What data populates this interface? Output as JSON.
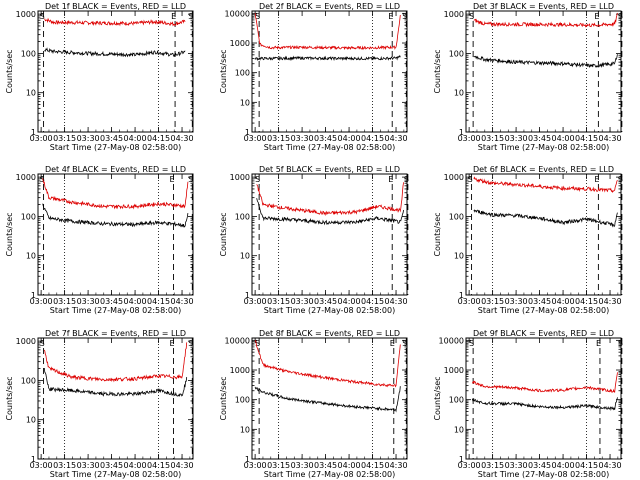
{
  "colors": {
    "events": "#000000",
    "lld": "#dd0000",
    "axis": "#000000"
  },
  "chart_data": [
    {
      "type": "line",
      "title": "Det 1f BLACK = Events, RED = LLD",
      "ylabel": "Counts/sec",
      "xlabel": "Start Time (27-May-08 02:58:00)",
      "x_ticks": [
        "03:00",
        "03:15",
        "03:30",
        "03:45",
        "04:00",
        "04:15",
        "04:30"
      ],
      "y_ticks": [
        "1",
        "10",
        "100",
        "1000"
      ],
      "xlim": [
        "02:58",
        "04:37"
      ],
      "ylim": [
        1,
        1200
      ],
      "y_scale": "log",
      "series": [
        {
          "name": "LLD",
          "color": "red",
          "x": [
            "03:02",
            "03:08",
            "03:30",
            "04:00",
            "04:13",
            "04:25",
            "04:32"
          ],
          "y": [
            750,
            620,
            600,
            580,
            640,
            560,
            650
          ]
        },
        {
          "name": "Events",
          "color": "black",
          "x": [
            "03:02",
            "03:08",
            "03:30",
            "04:00",
            "04:13",
            "04:25",
            "04:32"
          ],
          "y": [
            125,
            112,
            100,
            92,
            108,
            90,
            110
          ]
        }
      ],
      "markers": [
        {
          "label": "S",
          "time": "02:59"
        },
        {
          "label": "E",
          "time": "04:23"
        },
        {
          "label": "S",
          "time": "04:34"
        }
      ]
    },
    {
      "type": "line",
      "title": "Det 2f BLACK = Events, RED = LLD",
      "ylabel": "Counts/sec",
      "xlabel": "Start Time (27-May-08 02:58:00)",
      "x_ticks": [
        "03:00",
        "03:15",
        "03:30",
        "03:45",
        "04:00",
        "04:15",
        "04:30"
      ],
      "y_ticks": [
        "1",
        "10",
        "100",
        "1000",
        "10000"
      ],
      "xlim": [
        "02:58",
        "04:37"
      ],
      "ylim": [
        1,
        12000
      ],
      "y_scale": "log",
      "series": [
        {
          "name": "LLD",
          "color": "red",
          "x": [
            "03:00",
            "03:03",
            "03:10",
            "03:30",
            "04:00",
            "04:20",
            "04:30",
            "04:33"
          ],
          "y": [
            10000,
            900,
            700,
            720,
            680,
            700,
            720,
            10000
          ]
        },
        {
          "name": "Events",
          "color": "black",
          "x": [
            "03:00",
            "03:03",
            "03:10",
            "03:30",
            "04:00",
            "04:20",
            "04:30",
            "04:33"
          ],
          "y": [
            300,
            300,
            300,
            310,
            300,
            300,
            310,
            350
          ]
        }
      ],
      "markers": [
        {
          "label": "S",
          "time": "03:00"
        },
        {
          "label": "E",
          "time": "04:25"
        },
        {
          "label": "S",
          "time": "04:34"
        }
      ]
    },
    {
      "type": "line",
      "title": "Det 3f BLACK = Events, RED = LLD",
      "ylabel": "Counts/sec",
      "xlabel": "Start Time (27-May-08 02:58:00)",
      "x_ticks": [
        "03:00",
        "03:15",
        "03:30",
        "03:45",
        "04:00",
        "04:15",
        "04:30"
      ],
      "y_ticks": [
        "1",
        "10",
        "100",
        "1000"
      ],
      "xlim": [
        "02:58",
        "04:37"
      ],
      "ylim": [
        1,
        1200
      ],
      "y_scale": "log",
      "series": [
        {
          "name": "LLD",
          "color": "red",
          "x": [
            "03:03",
            "03:10",
            "03:30",
            "04:00",
            "04:20",
            "04:33",
            "04:35"
          ],
          "y": [
            700,
            560,
            550,
            540,
            520,
            560,
            1100
          ]
        },
        {
          "name": "Events",
          "color": "black",
          "x": [
            "03:03",
            "03:10",
            "03:30",
            "04:00",
            "04:20",
            "04:33",
            "04:35"
          ],
          "y": [
            85,
            70,
            60,
            55,
            48,
            55,
            110
          ]
        }
      ],
      "markers": [
        {
          "label": "S",
          "time": "03:00"
        },
        {
          "label": "E",
          "time": "04:20"
        },
        {
          "label": "S",
          "time": "04:35"
        }
      ]
    },
    {
      "type": "line",
      "title": "Det 4f BLACK = Events, RED = LLD",
      "ylabel": "Counts/sec",
      "xlabel": "Start Time (27-May-08 02:58:00)",
      "x_ticks": [
        "03:00",
        "03:15",
        "03:30",
        "03:45",
        "04:00",
        "04:15",
        "04:30"
      ],
      "y_ticks": [
        "1",
        "10",
        "100",
        "1000"
      ],
      "xlim": [
        "02:58",
        "04:37"
      ],
      "ylim": [
        1,
        1200
      ],
      "y_scale": "log",
      "series": [
        {
          "name": "LLD",
          "color": "red",
          "x": [
            "03:01",
            "03:05",
            "03:20",
            "03:40",
            "04:00",
            "04:15",
            "04:28",
            "04:32",
            "04:34"
          ],
          "y": [
            900,
            300,
            230,
            180,
            180,
            210,
            190,
            180,
            1000
          ]
        },
        {
          "name": "Events",
          "color": "black",
          "x": [
            "03:01",
            "03:05",
            "03:20",
            "03:40",
            "04:00",
            "04:15",
            "04:28",
            "04:32",
            "04:34"
          ],
          "y": [
            200,
            90,
            75,
            65,
            62,
            70,
            62,
            58,
            120
          ]
        }
      ],
      "markers": [
        {
          "label": "S",
          "time": "02:59"
        },
        {
          "label": "E",
          "time": "04:22"
        },
        {
          "label": "S",
          "time": "04:34"
        }
      ]
    },
    {
      "type": "line",
      "title": "Det 5f BLACK = Events, RED = LLD",
      "ylabel": "Counts/sec",
      "xlabel": "Start Time (27-May-08 02:58:00)",
      "x_ticks": [
        "03:00",
        "03:15",
        "03:30",
        "03:45",
        "04:00",
        "04:15",
        "04:30"
      ],
      "y_ticks": [
        "1",
        "10",
        "100",
        "1000"
      ],
      "xlim": [
        "02:58",
        "04:37"
      ],
      "ylim": [
        1,
        1200
      ],
      "y_scale": "log",
      "series": [
        {
          "name": "LLD",
          "color": "red",
          "x": [
            "03:01",
            "03:05",
            "03:20",
            "03:45",
            "04:05",
            "04:18",
            "04:30",
            "04:33",
            "04:35"
          ],
          "y": [
            700,
            200,
            160,
            120,
            130,
            180,
            150,
            140,
            900
          ]
        },
        {
          "name": "Events",
          "color": "black",
          "x": [
            "03:01",
            "03:05",
            "03:20",
            "03:45",
            "04:05",
            "04:18",
            "04:30",
            "04:33",
            "04:35"
          ],
          "y": [
            300,
            90,
            85,
            70,
            72,
            90,
            75,
            70,
            150
          ]
        }
      ],
      "markers": [
        {
          "label": "S",
          "time": "03:00"
        },
        {
          "label": "E",
          "time": "04:25"
        },
        {
          "label": "S",
          "time": "04:35"
        }
      ]
    },
    {
      "type": "line",
      "title": "Det 6f BLACK = Events, RED = LLD",
      "ylabel": "Counts/sec",
      "xlabel": "Start Time (27-May-08 02:58:00)",
      "x_ticks": [
        "03:00",
        "03:15",
        "03:30",
        "03:45",
        "04:00",
        "04:15",
        "04:30"
      ],
      "y_ticks": [
        "1",
        "10",
        "100",
        "1000"
      ],
      "xlim": [
        "02:58",
        "04:37"
      ],
      "ylim": [
        1,
        1200
      ],
      "y_scale": "log",
      "series": [
        {
          "name": "LLD",
          "color": "red",
          "x": [
            "03:03",
            "03:15",
            "03:30",
            "03:45",
            "04:00",
            "04:15",
            "04:33",
            "04:35"
          ],
          "y": [
            900,
            700,
            650,
            580,
            520,
            500,
            450,
            1000
          ]
        },
        {
          "name": "Events",
          "color": "black",
          "x": [
            "03:03",
            "03:15",
            "03:30",
            "03:45",
            "04:00",
            "04:15",
            "04:33",
            "04:35"
          ],
          "y": [
            140,
            110,
            105,
            90,
            70,
            85,
            60,
            150
          ]
        }
      ],
      "markers": [
        {
          "label": "S",
          "time": "02:59"
        },
        {
          "label": "E",
          "time": "04:20"
        },
        {
          "label": "S",
          "time": "04:35"
        }
      ]
    },
    {
      "type": "line",
      "title": "Det 7f BLACK = Events, RED = LLD",
      "ylabel": "Counts/sec",
      "xlabel": "Start Time (27-May-08 02:58:00)",
      "x_ticks": [
        "03:00",
        "03:15",
        "03:30",
        "03:45",
        "04:00",
        "04:15",
        "04:30"
      ],
      "y_ticks": [
        "1",
        "10",
        "100",
        "1000"
      ],
      "xlim": [
        "02:58",
        "04:37"
      ],
      "ylim": [
        1,
        1200
      ],
      "y_scale": "log",
      "series": [
        {
          "name": "LLD",
          "color": "red",
          "x": [
            "03:02",
            "03:05",
            "03:20",
            "03:40",
            "04:00",
            "04:15",
            "04:30",
            "04:33"
          ],
          "y": [
            600,
            200,
            120,
            105,
            110,
            130,
            120,
            900
          ]
        },
        {
          "name": "Events",
          "color": "black",
          "x": [
            "03:02",
            "03:05",
            "03:20",
            "03:40",
            "04:00",
            "04:15",
            "04:30",
            "04:33"
          ],
          "y": [
            200,
            60,
            55,
            45,
            45,
            55,
            42,
            110
          ]
        }
      ],
      "markers": [
        {
          "label": "S",
          "time": "02:59"
        },
        {
          "label": "E",
          "time": "04:22"
        },
        {
          "label": "S",
          "time": "04:34"
        }
      ]
    },
    {
      "type": "line",
      "title": "Det 8f BLACK = Events, RED = LLD",
      "ylabel": "Counts/sec",
      "xlabel": "Start Time (27-May-08 02:58:00)",
      "x_ticks": [
        "03:00",
        "03:15",
        "03:30",
        "03:45",
        "04:00",
        "04:15",
        "04:30"
      ],
      "y_ticks": [
        "1",
        "10",
        "100",
        "1000",
        "10000"
      ],
      "xlim": [
        "02:58",
        "04:37"
      ],
      "ylim": [
        1,
        12000
      ],
      "y_scale": "log",
      "series": [
        {
          "name": "LLD",
          "color": "red",
          "x": [
            "03:00",
            "03:05",
            "03:20",
            "03:40",
            "04:00",
            "04:20",
            "04:30",
            "04:33"
          ],
          "y": [
            10000,
            1500,
            900,
            600,
            420,
            320,
            300,
            10000
          ]
        },
        {
          "name": "Events",
          "color": "black",
          "x": [
            "03:00",
            "03:05",
            "03:20",
            "03:40",
            "04:00",
            "04:20",
            "04:30",
            "04:33"
          ],
          "y": [
            250,
            180,
            110,
            80,
            60,
            50,
            45,
            300
          ]
        }
      ],
      "markers": [
        {
          "label": "S",
          "time": "03:00"
        },
        {
          "label": "E",
          "time": "04:26"
        },
        {
          "label": "S",
          "time": "04:34"
        }
      ]
    },
    {
      "type": "line",
      "title": "Det 9f BLACK = Events, RED = LLD",
      "ylabel": "Counts/sec",
      "xlabel": "Start Time (27-May-08 02:58:00)",
      "x_ticks": [
        "03:00",
        "03:15",
        "03:30",
        "03:45",
        "04:00",
        "04:15",
        "04:30"
      ],
      "y_ticks": [
        "1",
        "10",
        "100",
        "1000",
        "10000"
      ],
      "xlim": [
        "02:58",
        "04:37"
      ],
      "ylim": [
        1,
        12000
      ],
      "y_scale": "log",
      "series": [
        {
          "name": "LLD",
          "color": "red",
          "x": [
            "03:02",
            "03:10",
            "03:30",
            "03:45",
            "04:00",
            "04:15",
            "04:33",
            "04:35"
          ],
          "y": [
            400,
            280,
            250,
            200,
            210,
            260,
            190,
            1000
          ]
        },
        {
          "name": "Events",
          "color": "black",
          "x": [
            "03:02",
            "03:10",
            "03:30",
            "03:45",
            "04:00",
            "04:15",
            "04:33",
            "04:35"
          ],
          "y": [
            100,
            75,
            72,
            58,
            55,
            62,
            50,
            150
          ]
        }
      ],
      "markers": [
        {
          "label": "S",
          "time": "03:00"
        },
        {
          "label": "E",
          "time": "04:21"
        },
        {
          "label": "S",
          "time": "04:35"
        }
      ]
    }
  ]
}
